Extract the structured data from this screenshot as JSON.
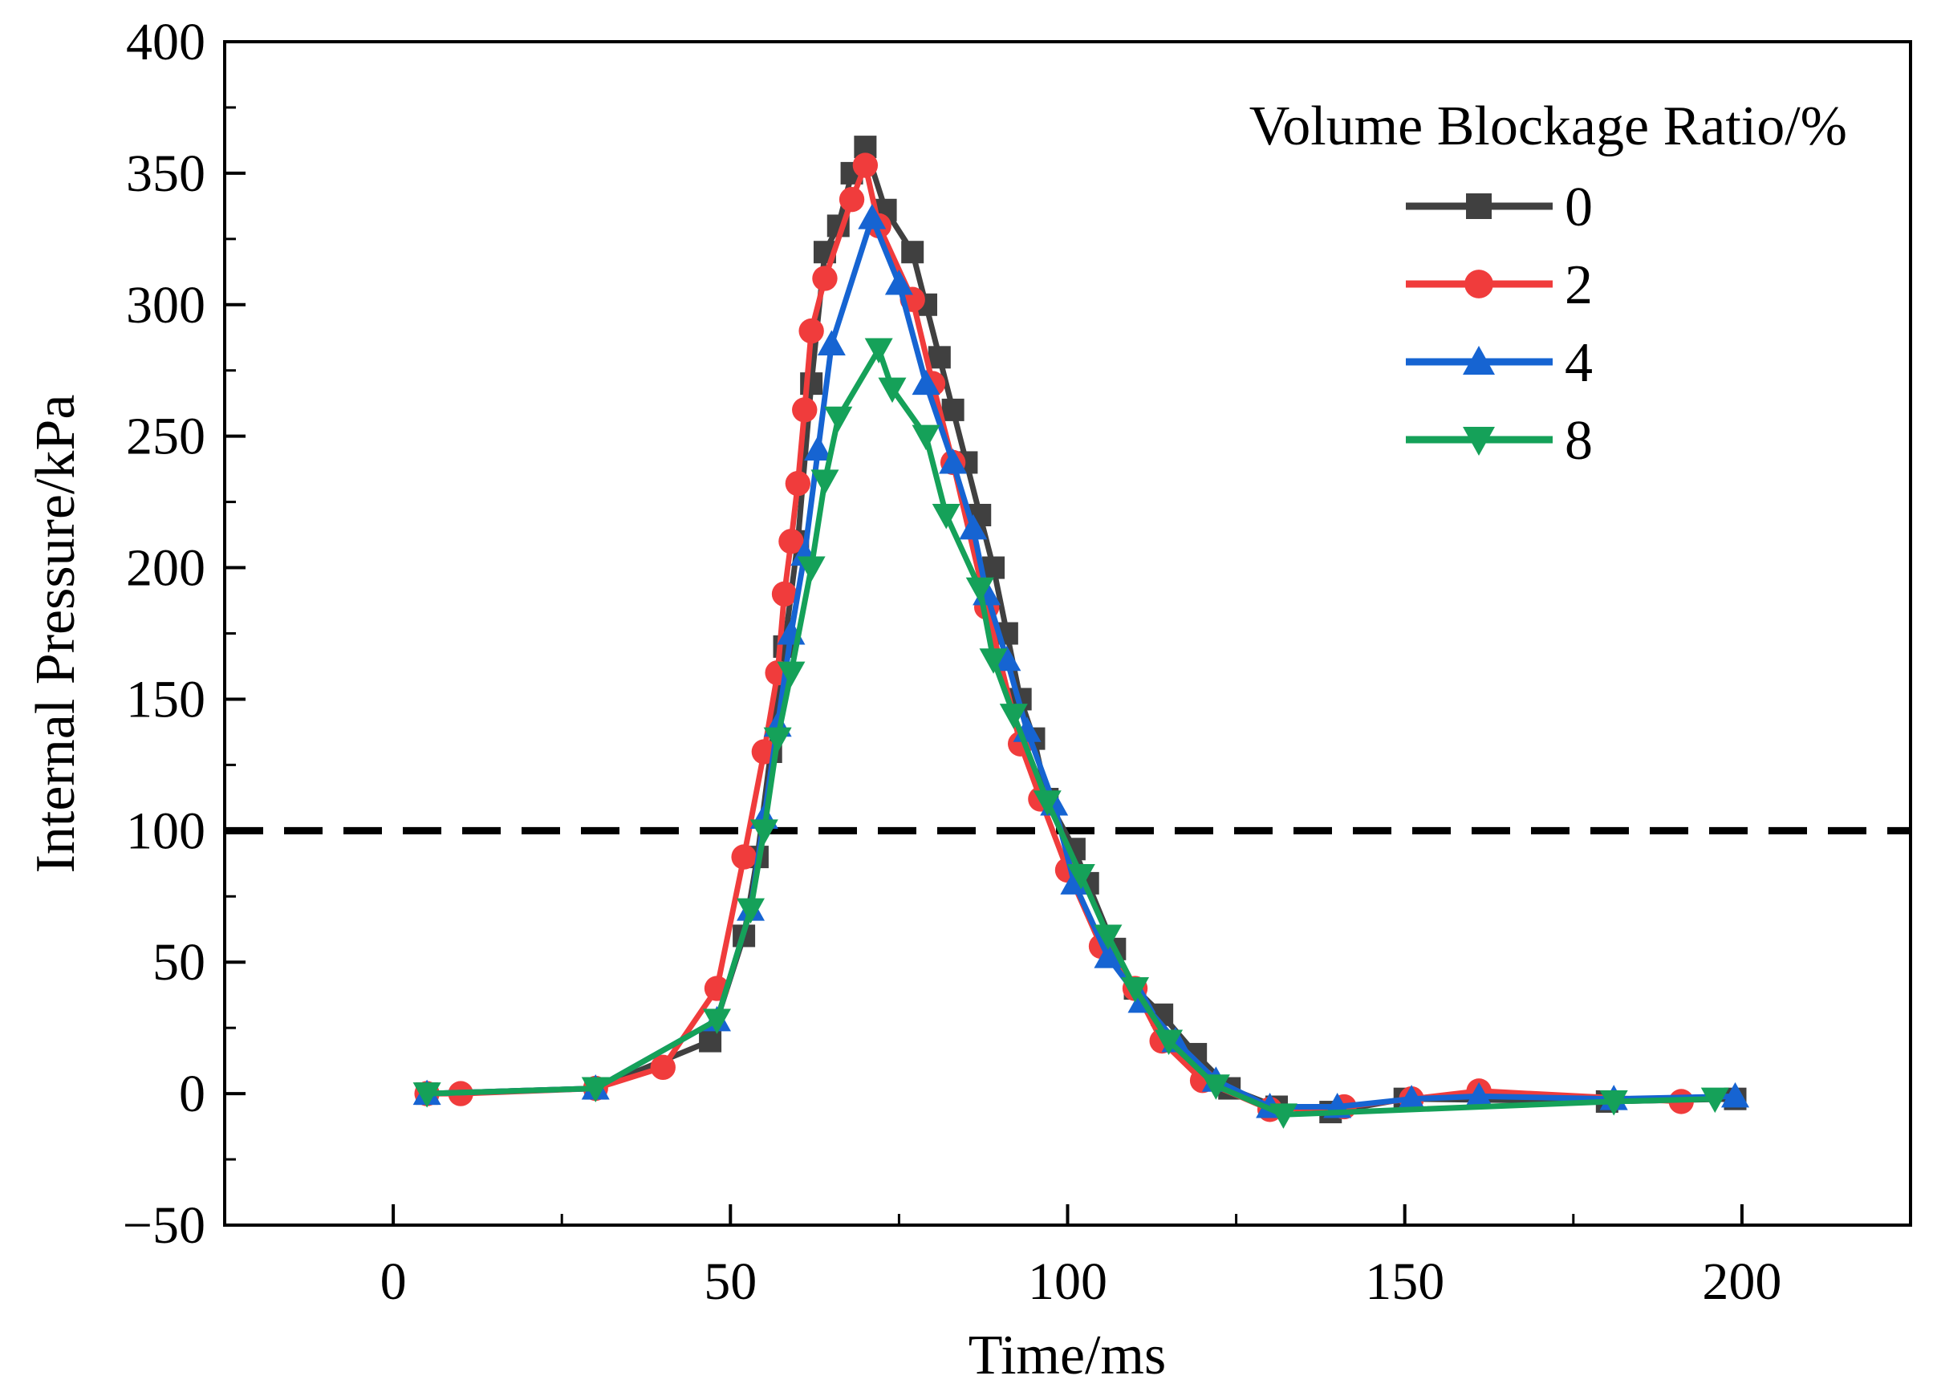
{
  "chart_data": {
    "type": "line",
    "title": "",
    "xlabel": "Time/ms",
    "ylabel": "Internal Pressure/kPa",
    "xlim": [
      -25,
      225
    ],
    "ylim": [
      -50,
      400
    ],
    "xticks": [
      "0",
      "50",
      "100",
      "150",
      "200"
    ],
    "yticks": [
      "−50",
      "0",
      "50",
      "100",
      "150",
      "200",
      "250",
      "300",
      "350",
      "400"
    ],
    "reference_line": {
      "y": 100,
      "style": "dashed",
      "color": "#000000"
    },
    "legend": {
      "title": "Volume Blockage Ratio/%",
      "position": "top-right"
    },
    "series": [
      {
        "name": "0",
        "color": "#404040",
        "marker": "square",
        "x": [
          5,
          30,
          47,
          52,
          54,
          56,
          58,
          60,
          62,
          64,
          66,
          68,
          70,
          73,
          77,
          79,
          81,
          83,
          85,
          87,
          89,
          91,
          93,
          95,
          97,
          101,
          103,
          107,
          110,
          114,
          119,
          124,
          131,
          139,
          150,
          180,
          199
        ],
        "y": [
          0,
          2,
          20,
          60,
          90,
          130,
          170,
          210,
          270,
          320,
          330,
          350,
          360,
          336,
          320,
          300,
          280,
          260,
          240,
          220,
          200,
          175,
          150,
          135,
          112,
          93,
          80,
          55,
          40,
          30,
          15,
          2,
          -5,
          -7,
          -2,
          -3,
          -2
        ]
      },
      {
        "name": "2",
        "color": "#F03C3C",
        "marker": "circle",
        "x": [
          5,
          10,
          30,
          40,
          48,
          52,
          55,
          57,
          58,
          59,
          60,
          61,
          62,
          64,
          68,
          70,
          72,
          77,
          80,
          83,
          88,
          93,
          96,
          100,
          105,
          110,
          114,
          120,
          130,
          141,
          151,
          161,
          191
        ],
        "y": [
          0,
          0,
          2,
          10,
          40,
          90,
          130,
          160,
          190,
          210,
          232,
          260,
          290,
          310,
          340,
          353,
          330,
          302,
          270,
          240,
          185,
          133,
          112,
          85,
          56,
          40,
          20,
          5,
          -6,
          -5,
          -2,
          1,
          -3
        ]
      },
      {
        "name": "4",
        "color": "#1664D2",
        "marker": "triangle-up",
        "x": [
          5,
          30,
          48,
          53,
          55,
          57,
          59,
          61,
          63,
          65,
          71,
          75,
          79,
          83,
          86,
          88,
          91,
          94,
          98,
          101,
          106,
          111,
          116,
          122,
          130,
          140,
          151,
          161,
          181,
          199
        ],
        "y": [
          0,
          2,
          28,
          70,
          105,
          140,
          175,
          205,
          245,
          285,
          333,
          308,
          270,
          240,
          215,
          190,
          165,
          138,
          110,
          80,
          52,
          35,
          20,
          5,
          -5,
          -5,
          -2,
          -1,
          -2,
          -1
        ]
      },
      {
        "name": "8",
        "color": "#15A159",
        "marker": "triangle-down",
        "x": [
          5,
          30,
          48,
          53,
          55,
          57,
          59,
          62,
          64,
          66,
          72,
          74,
          79,
          82,
          87,
          89,
          92,
          97,
          102,
          106,
          110,
          115,
          122,
          132,
          181,
          196
        ],
        "y": [
          0,
          2,
          28,
          70,
          100,
          135,
          160,
          200,
          233,
          257,
          283,
          268,
          250,
          220,
          192,
          165,
          144,
          111,
          83,
          60,
          40,
          20,
          3,
          -8,
          -3,
          -2
        ]
      }
    ]
  }
}
